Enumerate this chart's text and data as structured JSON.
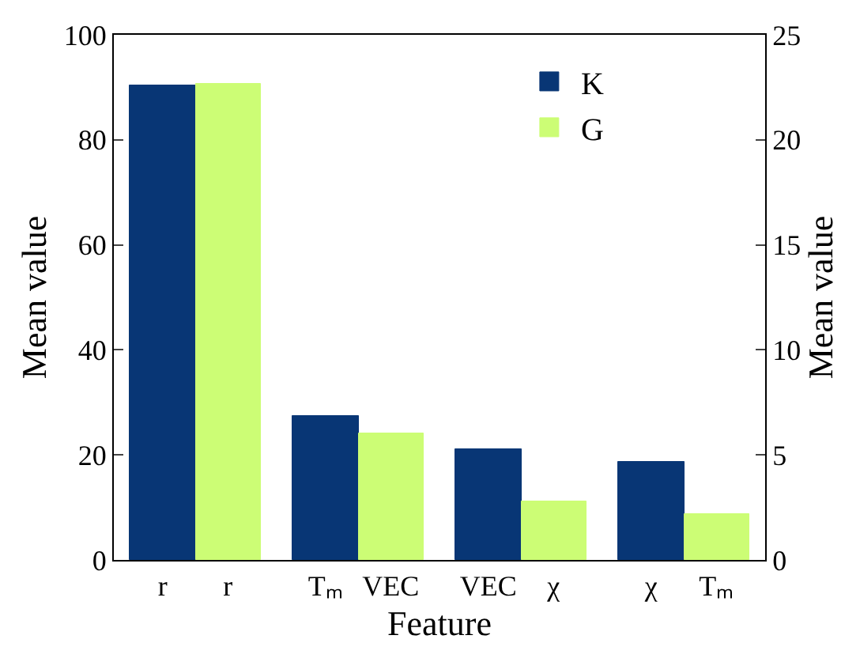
{
  "chart_data": {
    "type": "bar",
    "xlabel": "Feature",
    "ylabel": "Mean value",
    "y2label": "Mean value",
    "categories": [
      "r",
      "r",
      "Tₘ",
      "VEC",
      "VEC",
      "χ",
      "χ",
      "Tₘ"
    ],
    "series": [
      {
        "name": "K",
        "color": "#083675",
        "values": [
          90.4,
          null,
          27.4,
          null,
          21.1,
          null,
          18.7,
          null
        ]
      },
      {
        "name": "G",
        "color": "#ccfd75",
        "axis": "y2",
        "values": [
          null,
          22.65,
          null,
          6.0,
          null,
          2.8,
          null,
          2.2
        ]
      }
    ],
    "ylim": [
      0,
      100
    ],
    "yticks": [
      0,
      20,
      40,
      60,
      80,
      100
    ],
    "y2lim": [
      0,
      25
    ],
    "y2ticks": [
      0,
      5,
      10,
      15,
      20,
      25
    ],
    "legend": "top right"
  }
}
